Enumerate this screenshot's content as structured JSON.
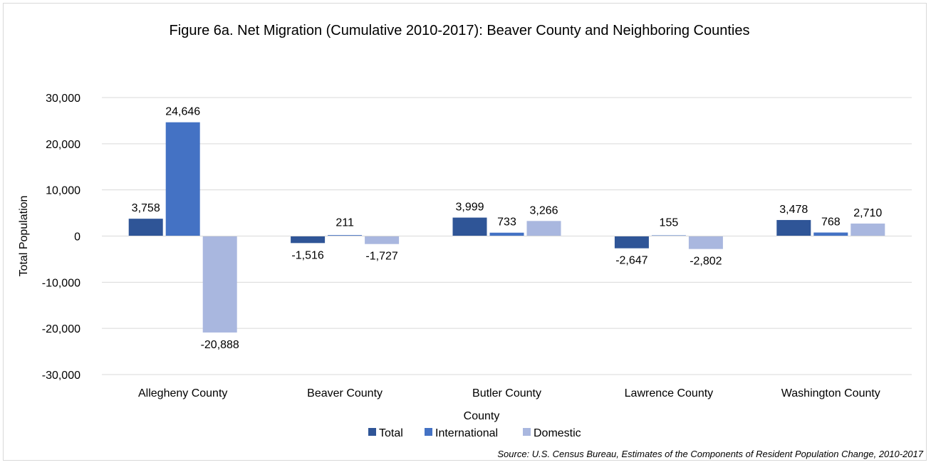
{
  "chart_data": {
    "type": "bar",
    "title": "Figure 6a. Net Migration (Cumulative 2010-2017): Beaver County and Neighboring Counties",
    "xlabel": "County",
    "ylabel": "Total Population",
    "categories": [
      "Allegheny County",
      "Beaver County",
      "Butler County",
      "Lawrence County",
      "Washington County"
    ],
    "series": [
      {
        "name": "Total",
        "color": "#2f5597",
        "values": [
          3758,
          -1516,
          3999,
          -2647,
          3478
        ]
      },
      {
        "name": "International",
        "color": "#4472c4",
        "values": [
          24646,
          211,
          733,
          155,
          768
        ]
      },
      {
        "name": "Domestic",
        "color": "#a9b7df",
        "values": [
          -20888,
          -1727,
          3266,
          -2802,
          2710
        ]
      }
    ],
    "data_labels": [
      [
        "3,758",
        "24,646",
        "-20,888"
      ],
      [
        "-1,516",
        "211",
        "-1,727"
      ],
      [
        "3,999",
        "733",
        "3,266"
      ],
      [
        "-2,647",
        "155",
        "-2,802"
      ],
      [
        "3,478",
        "768",
        "2,710"
      ]
    ],
    "ylim": [
      -30000,
      30000
    ],
    "yticks": [
      30000,
      20000,
      10000,
      0,
      -10000,
      -20000,
      -30000
    ],
    "ytick_labels": [
      "30,000",
      "20,000",
      "10,000",
      "0",
      "-10,000",
      "-20,000",
      "-30,000"
    ],
    "grid": true,
    "legend": "bottom",
    "source": "Source: U.S. Census Bureau, Estimates of the Components of Resident Population Change, 2010-2017"
  }
}
